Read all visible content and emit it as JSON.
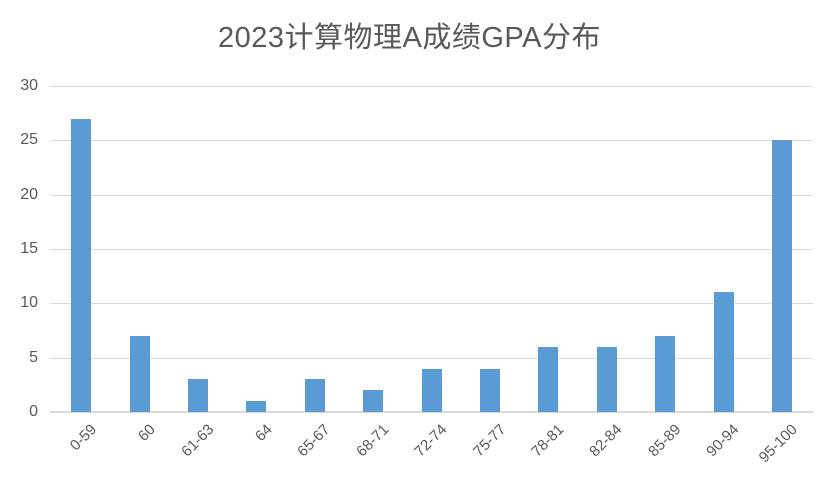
{
  "title": "2023计算物理A成绩GPA分布",
  "colors": {
    "bar": "#5b9bd5",
    "gridline": "#d9d9d9",
    "axis_text": "#595959",
    "title_text": "#595959",
    "background": "#ffffff"
  },
  "chart_data": {
    "type": "bar",
    "title": "2023计算物理A成绩GPA分布",
    "categories": [
      "0-59",
      "60",
      "61-63",
      "64",
      "65-67",
      "68-71",
      "72-74",
      "75-77",
      "78-81",
      "82-84",
      "85-89",
      "90-94",
      "95-100"
    ],
    "values": [
      27,
      7,
      3,
      1,
      3,
      2,
      4,
      4,
      6,
      6,
      7,
      11,
      25
    ],
    "xlabel": "",
    "ylabel": "",
    "ylim": [
      0,
      30
    ],
    "yticks": [
      0,
      5,
      10,
      15,
      20,
      25,
      30
    ],
    "grid": true,
    "legend": false,
    "x_label_rotation_deg": -45,
    "single_series": true
  }
}
